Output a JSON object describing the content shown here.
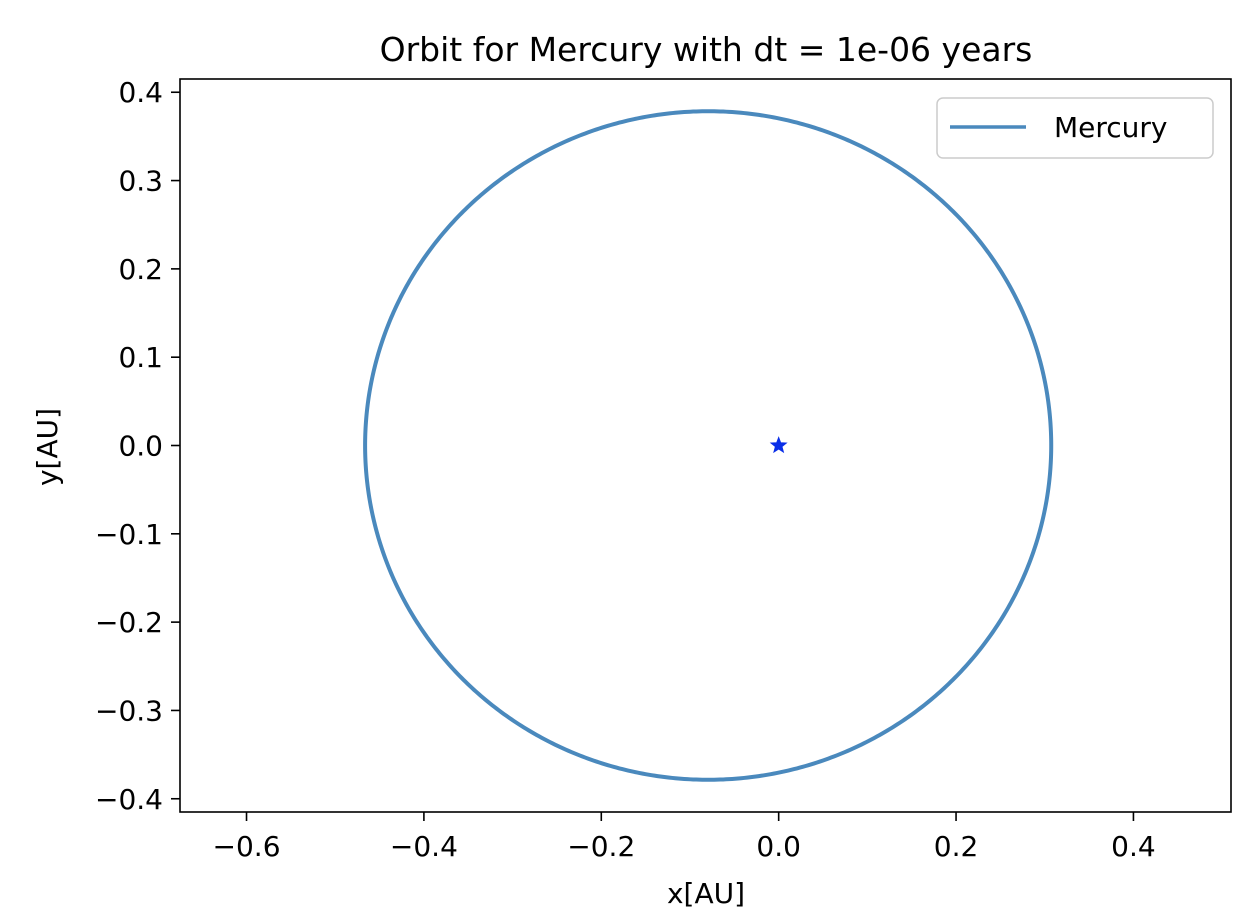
{
  "chart_data": {
    "type": "line",
    "title": "Orbit for Mercury with dt = 1e-06 years",
    "xlabel": "x[AU]",
    "ylabel": "y[AU]",
    "xlim": [
      -0.675,
      0.51
    ],
    "ylim": [
      -0.415,
      0.415
    ],
    "xticks": [
      -0.6,
      -0.4,
      -0.2,
      0.0,
      0.2,
      0.4
    ],
    "yticks": [
      -0.4,
      -0.3,
      -0.2,
      -0.1,
      0.0,
      0.1,
      0.2,
      0.3,
      0.4
    ],
    "xtick_labels": [
      "−0.6",
      "−0.4",
      "−0.2",
      "0.0",
      "0.2",
      "0.4"
    ],
    "ytick_labels": [
      "−0.4",
      "−0.3",
      "−0.2",
      "−0.1",
      "0.0",
      "0.1",
      "0.2",
      "0.3",
      "0.4"
    ],
    "grid": false,
    "legend_position": "top-right",
    "series": [
      {
        "name": "Mercury",
        "color": "#4a89bd",
        "orbit": {
          "center_x": -0.0795,
          "center_y": 0.0,
          "semi_major_axis": 0.3868,
          "semi_minor_axis": 0.3785,
          "x_min": -0.4663,
          "x_max": 0.3073,
          "y_min": -0.3785,
          "y_max": 0.3785
        }
      }
    ],
    "markers": [
      {
        "x": 0.0,
        "y": 0.0,
        "shape": "star",
        "color": "#0a2fe8"
      }
    ]
  }
}
